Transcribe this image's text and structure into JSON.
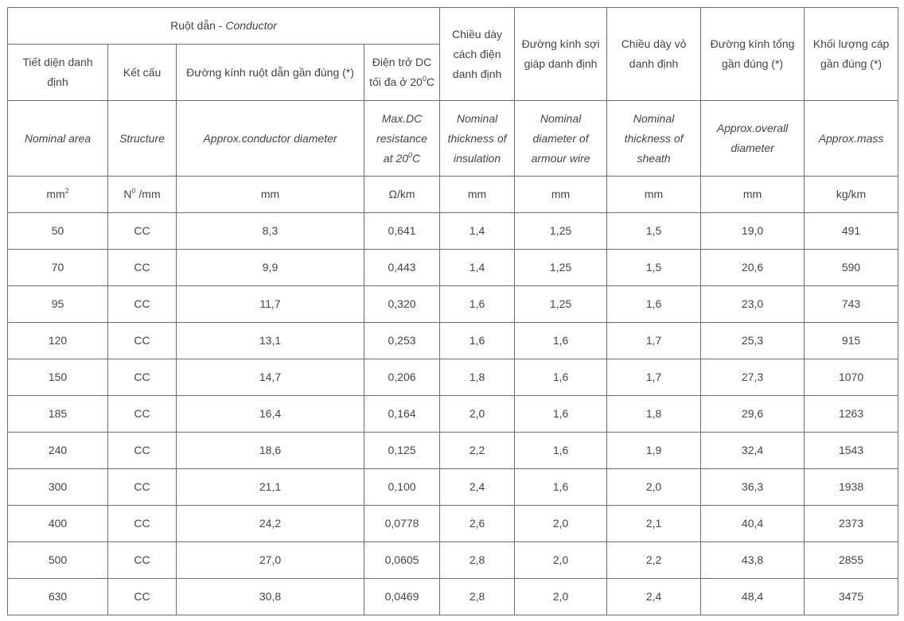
{
  "header": {
    "conductor_group": {
      "vi": "Ruột dẫn - ",
      "en": "Conductor"
    },
    "insulation": {
      "vi": "Chiều dày\ncách điện\ndanh định",
      "en": "Nominal\nthickness of\ninsulation"
    },
    "armour": {
      "vi": "Đường kính sợi\ngiáp danh định",
      "en": "Nominal\ndiameter of\narmour wire"
    },
    "sheath": {
      "vi": "Chiều dày vỏ\ndanh định",
      "en": "Nominal\nthickness of\nsheath"
    },
    "overall": {
      "vi": "Đường kính tổng\ngần đúng (*)",
      "en": "Approx.overall\ndiameter"
    },
    "mass": {
      "vi": "Khối lượng cáp\ngần đúng (*)",
      "en": "Approx.mass"
    },
    "area": {
      "vi": "Tiết diện danh\nđịnh",
      "en": "Nominal area"
    },
    "structure": {
      "vi": "Kết cấu",
      "en": "Structure"
    },
    "cond_diameter": {
      "vi": "Đường kính ruột dẫn gần đúng (*)",
      "en": "Approx.conductor diameter"
    },
    "resistance": {
      "vi_pre": "Điện trở DC\ntối đa ở 20",
      "vi_sup": "0",
      "vi_post": "C",
      "en_pre": "Max.DC\nresistance\nat 20",
      "en_sup": "0",
      "en_post": "C"
    }
  },
  "units": {
    "area": {
      "base": "mm",
      "sup": "2"
    },
    "structure": {
      "base": "N",
      "sup": "0",
      "post": " /mm"
    },
    "cond_diameter": "mm",
    "resistance": "Ω/km",
    "insulation": "mm",
    "armour": "mm",
    "sheath": "mm",
    "overall": "mm",
    "mass": "kg/km"
  },
  "rows": [
    [
      "50",
      "CC",
      "8,3",
      "0,641",
      "1,4",
      "1,25",
      "1,5",
      "19,0",
      "491"
    ],
    [
      "70",
      "CC",
      "9,9",
      "0,443",
      "1,4",
      "1,25",
      "1,5",
      "20,6",
      "590"
    ],
    [
      "95",
      "CC",
      "11,7",
      "0,320",
      "1,6",
      "1,25",
      "1,6",
      "23,0",
      "743"
    ],
    [
      "120",
      "CC",
      "13,1",
      "0,253",
      "1,6",
      "1,6",
      "1,7",
      "25,3",
      "915"
    ],
    [
      "150",
      "CC",
      "14,7",
      "0,206",
      "1,8",
      "1,6",
      "1,7",
      "27,3",
      "1070"
    ],
    [
      "185",
      "CC",
      "16,4",
      "0,164",
      "2,0",
      "1,6",
      "1,8",
      "29,6",
      "1263"
    ],
    [
      "240",
      "CC",
      "18,6",
      "0,125",
      "2,2",
      "1,6",
      "1,9",
      "32,4",
      "1543"
    ],
    [
      "300",
      "CC",
      "21,1",
      "0,100",
      "2,4",
      "1,6",
      "2,0",
      "36,3",
      "1938"
    ],
    [
      "400",
      "CC",
      "24,2",
      "0,0778",
      "2,6",
      "2,0",
      "2,1",
      "40,4",
      "2373"
    ],
    [
      "500",
      "CC",
      "27,0",
      "0,0605",
      "2,8",
      "2,0",
      "2,2",
      "43,8",
      "2855"
    ],
    [
      "630",
      "CC",
      "30,8",
      "0,0469",
      "2,8",
      "2,0",
      "2,4",
      "48,4",
      "3475"
    ]
  ]
}
